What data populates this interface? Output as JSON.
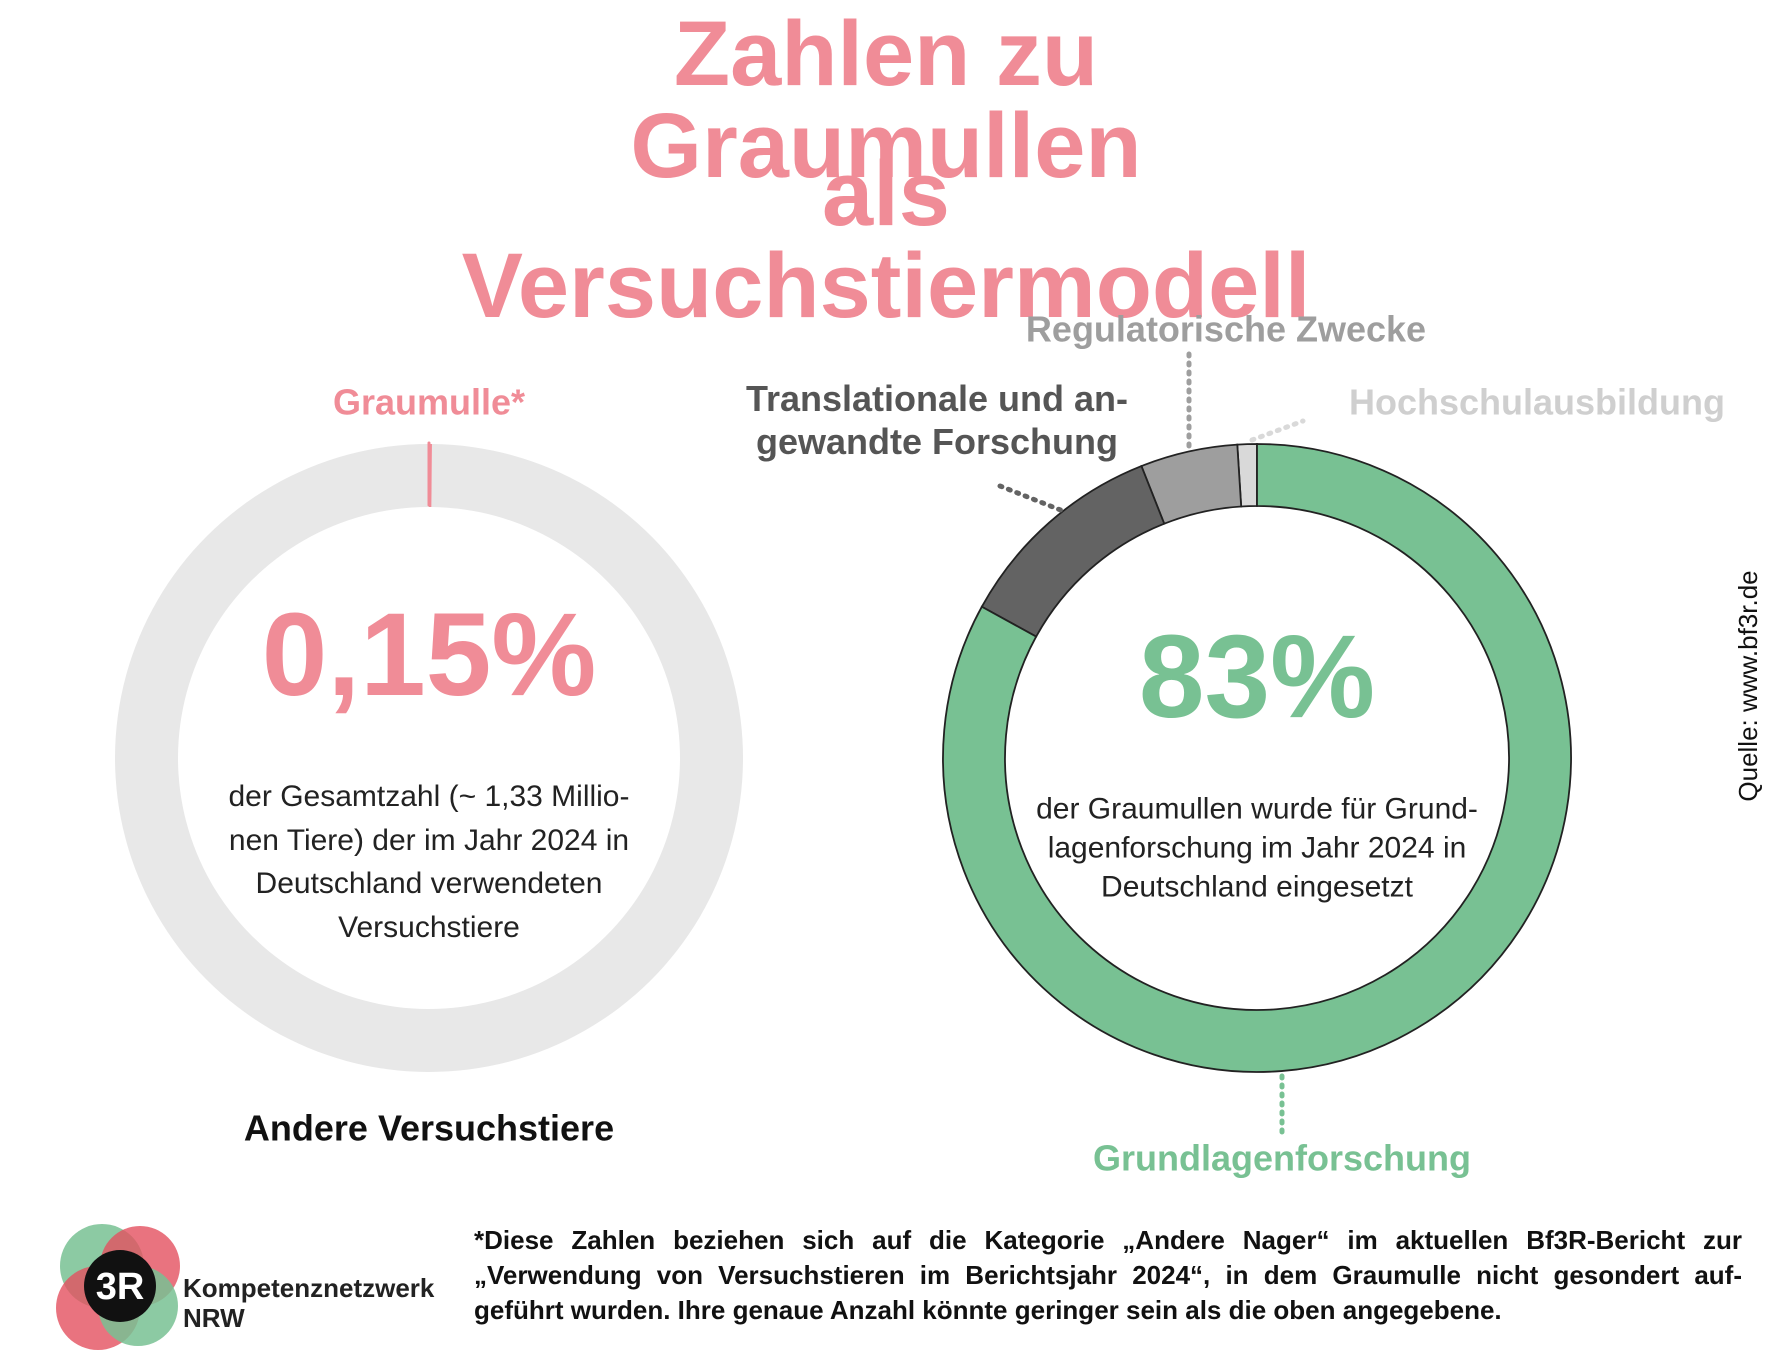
{
  "header": {
    "title_lines": [
      "Zahlen zu Graumullen",
      "als Versuchstiermodell"
    ]
  },
  "chart_data": [
    {
      "type": "donut",
      "categories": [
        "Graumulle*",
        "Andere Versuchstiere"
      ],
      "values": [
        0.15,
        99.85
      ],
      "value_labels": [
        "0,15%",
        null
      ],
      "colors": [
        "#f08c97",
        "#e8e8e8"
      ],
      "description": "der Gesamtzahl (~ 1,33 Millio-\nnen Tiere) der im Jahr 2024 in\nDeutschland verwendeten\nVersuchstiere"
    },
    {
      "type": "donut",
      "categories": [
        "Grundlagenforschung",
        "Translationale und an-\ngewandte Forschung",
        "Regulatorische Zwecke",
        "Hochschulausbildung"
      ],
      "values": [
        83,
        11,
        5,
        1
      ],
      "value_labels": [
        "83%",
        null,
        null,
        null
      ],
      "colors": [
        "#78c193",
        "#636363",
        "#9e9e9e",
        "#d9d9d9"
      ],
      "border_color": "#222222",
      "description": "der Graumullen wurde für Grund-\nlagenforschung im Jahr 2024 in\nDeutschland eingesetzt"
    }
  ],
  "source": "Quelle: www.bf3r.de",
  "logo": {
    "mark": "3R",
    "lines": [
      "Kompetenznetzwerk",
      "NRW"
    ]
  },
  "footnote_lines": [
    "*Diese Zahlen beziehen sich auf die Kategorie „Andere Nager“ im aktuellen Bf3R-Bericht zur",
    "„Verwendung von Versuchstieren im Berichtsjahr 2024“, in dem Graumulle nicht gesondert auf-",
    "geführt wurden. Ihre genaue Anzahl könnte geringer sein als die oben angegebene."
  ]
}
